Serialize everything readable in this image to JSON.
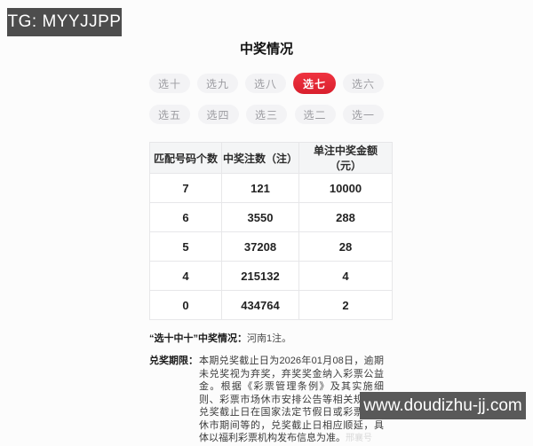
{
  "badges": {
    "tg_label": "TG: MYYJJPP",
    "site_url": "www.doudizhu-jj.com"
  },
  "page": {
    "title": "中奖情况"
  },
  "colors": {
    "accent_red": "#e4242f",
    "badge_gray": "#4d4d4d",
    "tab_inactive_bg": "#f3f3f5",
    "table_header_bg": "#f4f5f6"
  },
  "tabs": {
    "items": [
      {
        "label": "选十",
        "active": false
      },
      {
        "label": "选九",
        "active": false
      },
      {
        "label": "选八",
        "active": false
      },
      {
        "label": "选七",
        "active": true
      },
      {
        "label": "选六",
        "active": false
      },
      {
        "label": "选五",
        "active": false
      },
      {
        "label": "选四",
        "active": false
      },
      {
        "label": "选三",
        "active": false
      },
      {
        "label": "选二",
        "active": false
      },
      {
        "label": "选一",
        "active": false
      }
    ]
  },
  "table": {
    "columns": [
      "匹配号码个数",
      "中奖注数（注）",
      "单注中奖金额（元）"
    ],
    "rows": [
      [
        "7",
        "121",
        "10000"
      ],
      [
        "6",
        "3550",
        "288"
      ],
      [
        "5",
        "37208",
        "28"
      ],
      [
        "4",
        "215132",
        "4"
      ],
      [
        "0",
        "434764",
        "2"
      ]
    ]
  },
  "footnote": {
    "label": "“选十中十”中奖情况：",
    "value": "河南1注。"
  },
  "deadline": {
    "label": "兑奖期限：",
    "text": "本期兑奖截止日为2026年01月08日，逾期未兑奖视为弃奖，弃奖奖金纳入彩票公益金。根据《彩票管理条例》及其实施细则、彩票市场休市安排公告等相关规定，兑奖截止日在国家法定节假日或彩票市场休市期间等的，兑奖截止日相应顺延，具体以福利彩票机构发布信息为准。",
    "watermark": "邢襄号"
  }
}
